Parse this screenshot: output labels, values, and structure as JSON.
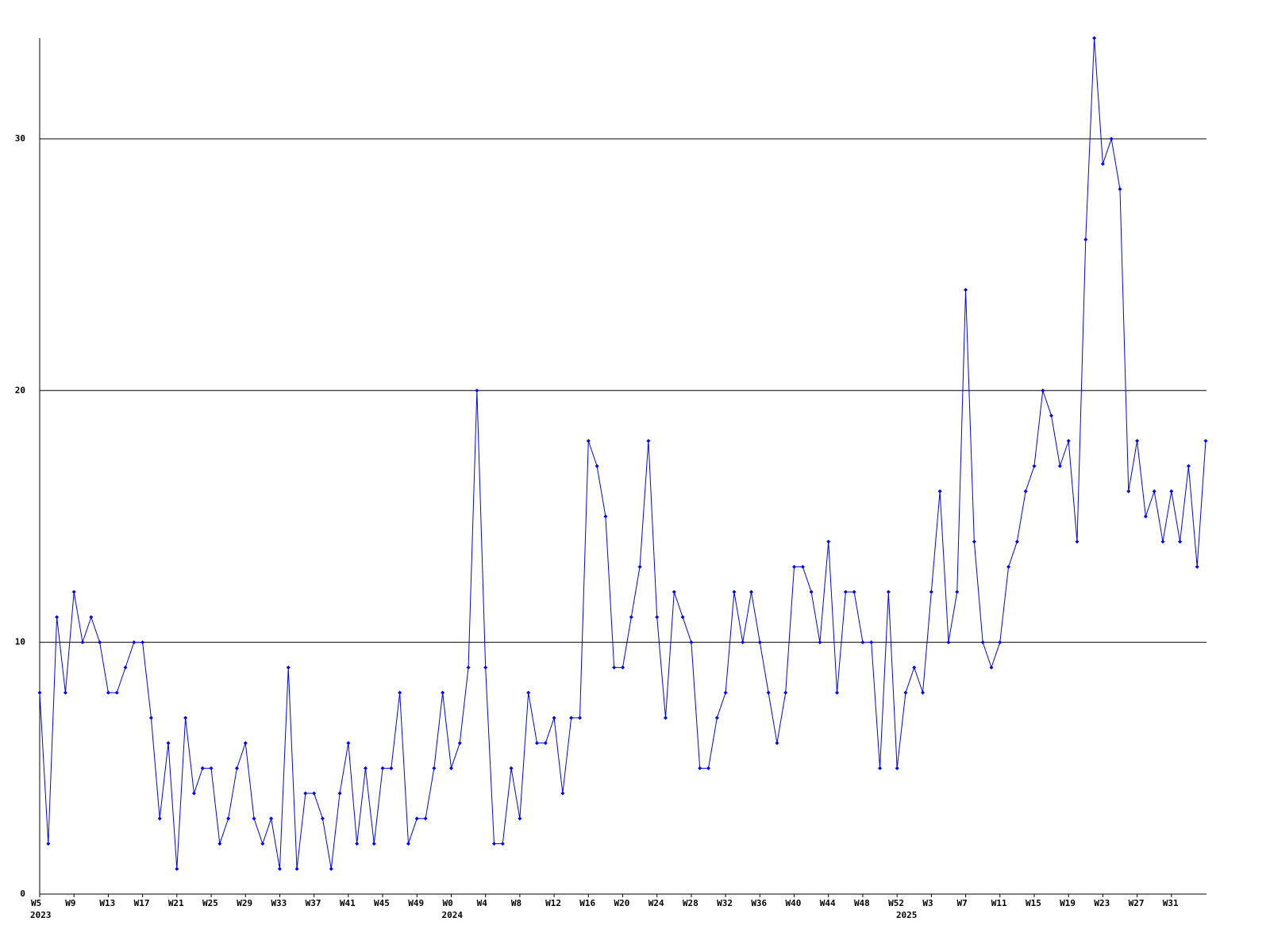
{
  "chart_data": {
    "type": "line",
    "categories": [
      "W5",
      null,
      null,
      null,
      "W9",
      null,
      null,
      null,
      "W13",
      null,
      null,
      null,
      "W17",
      null,
      null,
      null,
      "W21",
      null,
      null,
      null,
      "W25",
      null,
      null,
      null,
      "W29",
      null,
      null,
      null,
      "W33",
      null,
      null,
      null,
      "W37",
      null,
      null,
      null,
      "W41",
      null,
      null,
      null,
      "W45",
      null,
      null,
      null,
      "W49",
      null,
      null,
      null,
      "W0",
      null,
      null,
      null,
      "W4",
      null,
      null,
      null,
      "W8",
      null,
      null,
      null,
      "W12",
      null,
      null,
      null,
      "W16",
      null,
      null,
      null,
      "W20",
      null,
      null,
      null,
      "W24",
      null,
      null,
      null,
      "W28",
      null,
      null,
      null,
      "W32",
      null,
      null,
      null,
      "W36",
      null,
      null,
      null,
      "W40",
      null,
      null,
      null,
      "W44",
      null,
      null,
      null,
      "W48",
      null,
      null,
      null,
      "W52",
      null,
      null,
      null,
      "W3",
      null,
      null,
      null,
      "W7",
      null,
      null,
      null,
      "W11",
      null,
      null,
      null,
      "W15",
      null,
      null,
      null,
      "W19",
      null,
      null,
      null,
      "W23",
      null,
      null,
      null,
      "W27",
      null,
      null,
      null,
      "W31",
      null,
      null,
      null,
      null
    ],
    "years": [
      "2023",
      null,
      null,
      null,
      null,
      null,
      null,
      null,
      null,
      null,
      null,
      null,
      null,
      null,
      null,
      null,
      null,
      null,
      null,
      null,
      null,
      null,
      null,
      null,
      null,
      null,
      null,
      null,
      null,
      null,
      null,
      null,
      null,
      null,
      null,
      null,
      null,
      null,
      null,
      null,
      null,
      null,
      null,
      null,
      null,
      null,
      null,
      null,
      "2024",
      null,
      null,
      null,
      null,
      null,
      null,
      null,
      null,
      null,
      null,
      null,
      null,
      null,
      null,
      null,
      null,
      null,
      null,
      null,
      null,
      null,
      null,
      null,
      null,
      null,
      null,
      null,
      null,
      null,
      null,
      null,
      null,
      null,
      null,
      null,
      null,
      null,
      null,
      null,
      null,
      null,
      null,
      null,
      null,
      null,
      null,
      null,
      null,
      null,
      null,
      null,
      null,
      "2025",
      null,
      null,
      null,
      null,
      null,
      null,
      null,
      null,
      null,
      null,
      null,
      null,
      null,
      null,
      null,
      null,
      null,
      null,
      null,
      null,
      null,
      null,
      null,
      null,
      null,
      null,
      null,
      null,
      null,
      null,
      null,
      null,
      null,
      null,
      null
    ],
    "values": [
      8,
      2,
      11,
      8,
      12,
      10,
      11,
      10,
      8,
      8,
      9,
      10,
      10,
      7,
      3,
      6,
      1,
      7,
      4,
      5,
      5,
      2,
      3,
      5,
      6,
      3,
      2,
      3,
      1,
      9,
      1,
      4,
      4,
      3,
      1,
      4,
      6,
      2,
      5,
      2,
      5,
      5,
      8,
      2,
      3,
      3,
      5,
      8,
      5,
      6,
      9,
      20,
      9,
      2,
      2,
      5,
      3,
      8,
      6,
      6,
      7,
      4,
      7,
      7,
      18,
      17,
      15,
      9,
      9,
      11,
      13,
      18,
      11,
      7,
      12,
      11,
      10,
      5,
      5,
      7,
      8,
      12,
      10,
      12,
      10,
      8,
      6,
      8,
      13,
      13,
      12,
      10,
      14,
      8,
      12,
      12,
      10,
      10,
      5,
      12,
      5,
      8,
      9,
      8,
      12,
      16,
      10,
      12,
      24,
      14,
      10,
      9,
      10,
      13,
      14,
      16,
      17,
      20,
      19,
      17,
      18,
      14,
      26,
      34,
      29,
      30,
      28,
      16,
      18,
      15,
      16,
      14,
      16,
      14,
      17,
      13,
      18
    ],
    "color": "#0000ff",
    "ylim": [
      0,
      34
    ],
    "yticks": [
      0,
      10,
      20,
      30
    ],
    "grid": true
  }
}
